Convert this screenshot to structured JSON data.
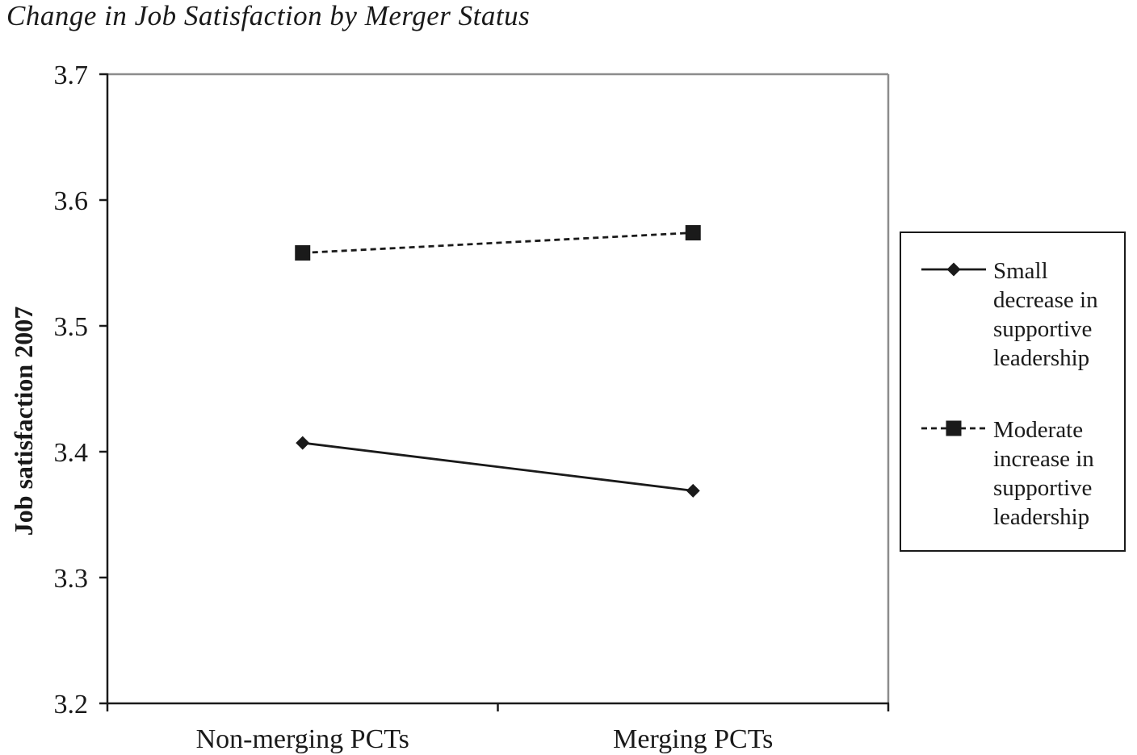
{
  "chart_data": {
    "type": "line",
    "title": "Change in Job Satisfaction by Merger Status",
    "xlabel": "",
    "ylabel": "Job satisfaction 2007",
    "categories": [
      "Non-merging PCTs",
      "Merging PCTs"
    ],
    "ylim": [
      3.2,
      3.7
    ],
    "yticks": [
      "3.2",
      "3.3",
      "3.4",
      "3.5",
      "3.6",
      "3.7"
    ],
    "grid": false,
    "legend_position": "right",
    "series": [
      {
        "name": "Small decrease in supportive leadership",
        "name_lines": [
          "Small",
          "decrease in",
          "supportive",
          "leadership"
        ],
        "values": [
          3.407,
          3.369
        ],
        "marker": "diamond",
        "line_style": "solid",
        "color": "#1a1a1a"
      },
      {
        "name": "Moderate increase in supportive leadership",
        "name_lines": [
          "Moderate",
          "increase in",
          "supportive",
          "leadership"
        ],
        "values": [
          3.558,
          3.574
        ],
        "marker": "square",
        "line_style": "dashed",
        "color": "#1a1a1a"
      }
    ]
  }
}
